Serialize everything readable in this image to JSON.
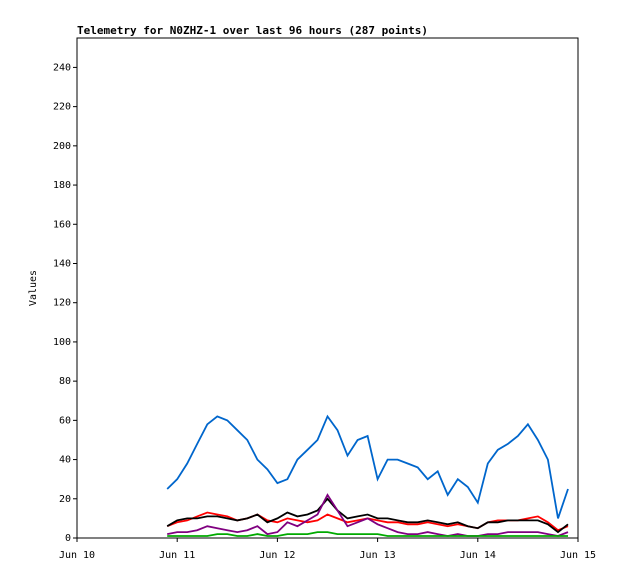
{
  "chart_data": {
    "type": "line",
    "title": "Telemetry for N0ZHZ-1 over last 96 hours (287 points)",
    "y_label": "Values",
    "x": [
      10.9,
      11.0,
      11.1,
      11.2,
      11.3,
      11.4,
      11.5,
      11.6,
      11.7,
      11.8,
      11.9,
      12.0,
      12.1,
      12.2,
      12.3,
      12.4,
      12.5,
      12.6,
      12.7,
      12.8,
      12.9,
      13.0,
      13.1,
      13.2,
      13.3,
      13.4,
      13.5,
      13.6,
      13.7,
      13.8,
      13.9,
      14.0,
      14.1,
      14.2,
      14.3,
      14.4,
      14.5,
      14.6,
      14.7,
      14.8,
      14.9
    ],
    "series": [
      {
        "color": "#0066cc",
        "values": [
          25,
          30,
          38,
          48,
          58,
          62,
          60,
          55,
          50,
          40,
          35,
          28,
          30,
          40,
          45,
          50,
          62,
          55,
          42,
          50,
          52,
          30,
          40,
          40,
          38,
          36,
          30,
          34,
          22,
          30,
          26,
          18,
          38,
          45,
          48,
          52,
          58,
          50,
          40,
          10,
          25
        ]
      },
      {
        "color": "#ff0000",
        "values": [
          6,
          8,
          9,
          11,
          13,
          12,
          11,
          9,
          10,
          12,
          9,
          8,
          10,
          9,
          8,
          9,
          12,
          10,
          8,
          9,
          10,
          9,
          8,
          8,
          7,
          7,
          8,
          7,
          6,
          7,
          6,
          5,
          8,
          9,
          9,
          9,
          10,
          11,
          8,
          4,
          6
        ]
      },
      {
        "color": "#000000",
        "values": [
          6,
          9,
          10,
          10,
          11,
          11,
          10,
          9,
          10,
          12,
          8,
          10,
          13,
          11,
          12,
          14,
          20,
          14,
          10,
          11,
          12,
          10,
          10,
          9,
          8,
          8,
          9,
          8,
          7,
          8,
          6,
          5,
          8,
          8,
          9,
          9,
          9,
          9,
          7,
          3,
          7
        ]
      },
      {
        "color": "#800080",
        "values": [
          2,
          3,
          3,
          4,
          6,
          5,
          4,
          3,
          4,
          6,
          2,
          3,
          8,
          6,
          9,
          12,
          22,
          14,
          6,
          8,
          10,
          7,
          5,
          3,
          2,
          2,
          3,
          2,
          1,
          2,
          1,
          1,
          2,
          2,
          3,
          3,
          3,
          3,
          2,
          1,
          3
        ]
      },
      {
        "color": "#00aa00",
        "values": [
          1,
          1,
          1,
          1,
          1,
          2,
          2,
          1,
          1,
          2,
          1,
          1,
          2,
          2,
          2,
          3,
          3,
          2,
          2,
          2,
          2,
          2,
          1,
          1,
          1,
          1,
          1,
          1,
          1,
          1,
          1,
          1,
          1,
          1,
          1,
          1,
          1,
          1,
          1,
          1,
          1
        ]
      }
    ],
    "xlim": [
      10,
      15
    ],
    "xticks": [
      {
        "value": 10,
        "label": "Jun 10"
      },
      {
        "value": 11,
        "label": "Jun 11"
      },
      {
        "value": 12,
        "label": "Jun 12"
      },
      {
        "value": 13,
        "label": "Jun 13"
      },
      {
        "value": 14,
        "label": "Jun 14"
      },
      {
        "value": 15,
        "label": "Jun 15"
      }
    ],
    "ylim": [
      0,
      255
    ],
    "yticks": [
      0,
      20,
      40,
      60,
      80,
      100,
      120,
      140,
      160,
      180,
      200,
      220,
      240
    ]
  }
}
